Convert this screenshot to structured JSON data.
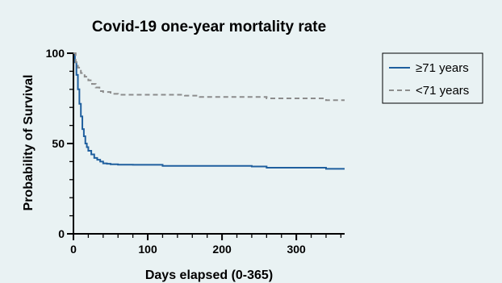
{
  "chart_data": {
    "type": "line",
    "title": "Covid-19 one-year mortality rate",
    "xlabel": "Days elapsed (0-365)",
    "ylabel": "Probability of Survival",
    "xlim": [
      0,
      365
    ],
    "ylim": [
      0,
      100
    ],
    "x_ticks": [
      0,
      100,
      200,
      300
    ],
    "y_ticks": [
      0,
      50,
      100
    ],
    "grid": false,
    "legend_position": "right",
    "series": [
      {
        "name": "≥71 years",
        "color": "#1f5f9e",
        "style": "solid",
        "step": true,
        "x": [
          0,
          2,
          4,
          6,
          8,
          10,
          12,
          14,
          16,
          18,
          20,
          24,
          28,
          32,
          36,
          40,
          45,
          50,
          60,
          80,
          120,
          160,
          200,
          240,
          260,
          300,
          340,
          365
        ],
        "y": [
          100,
          95,
          88,
          80,
          72,
          65,
          58,
          54,
          50,
          48,
          46,
          44,
          42,
          41,
          40,
          39,
          38.8,
          38.5,
          38.3,
          38.2,
          37.6,
          37.6,
          37.6,
          37.3,
          36.6,
          36.6,
          36,
          36
        ]
      },
      {
        "name": "<71 years",
        "color": "#8c8c8c",
        "style": "dashed",
        "step": true,
        "x": [
          0,
          3,
          6,
          10,
          15,
          20,
          25,
          30,
          35,
          40,
          50,
          60,
          80,
          120,
          150,
          170,
          200,
          230,
          260,
          300,
          340,
          365
        ],
        "y": [
          100,
          95,
          92,
          89,
          87,
          85,
          83,
          81,
          79,
          78.5,
          77.5,
          77,
          77,
          77,
          76.5,
          75.8,
          75.8,
          75.8,
          75,
          75,
          74,
          74
        ]
      }
    ]
  }
}
